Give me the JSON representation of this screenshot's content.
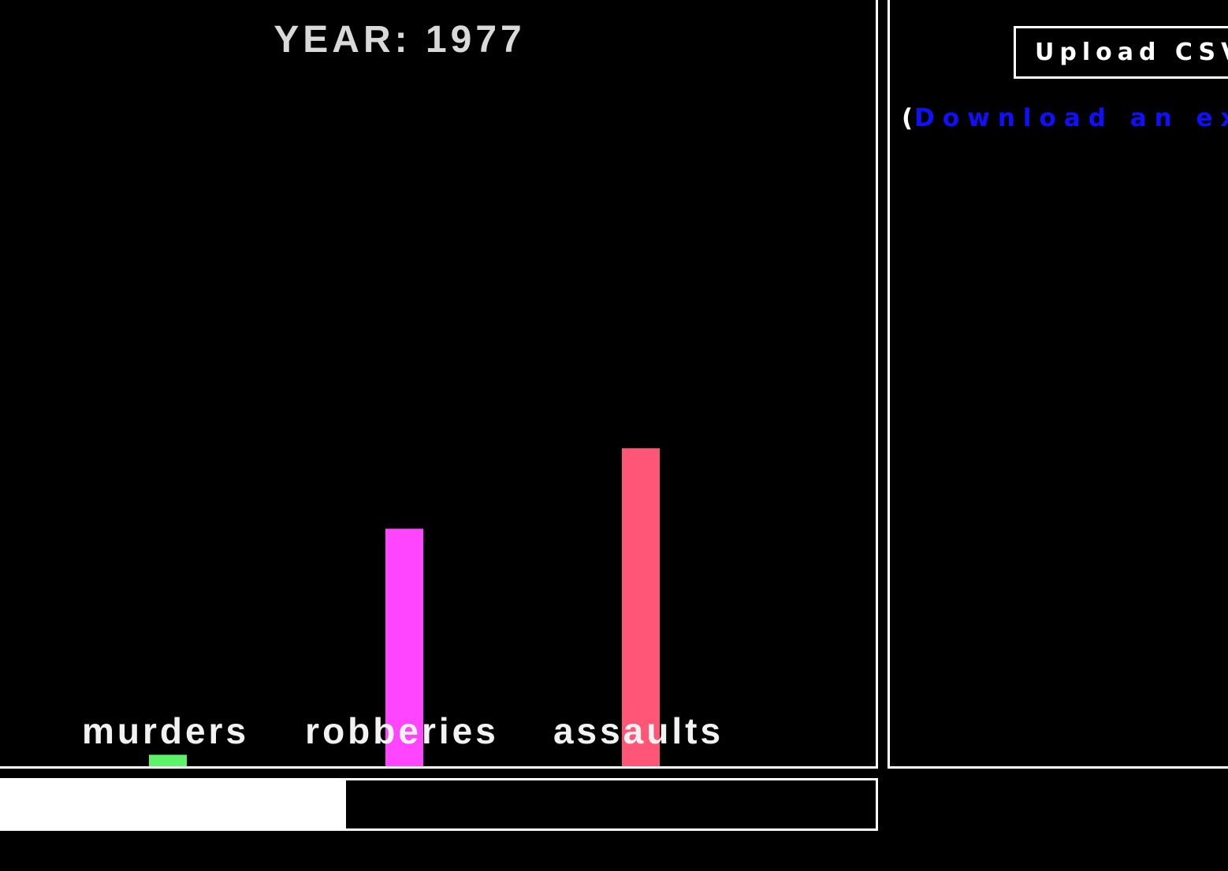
{
  "year_title": "YEAR: 1977",
  "chart_data": {
    "type": "bar",
    "categories": [
      "murders",
      "robberies",
      "assaults"
    ],
    "values": [
      1.5,
      31,
      41.5
    ],
    "ylim": [
      0,
      100
    ],
    "colors": [
      "#5cf26a",
      "#ff45ff",
      "#ff5577"
    ],
    "grid": false,
    "title": "YEAR: 1977"
  },
  "side": {
    "upload_label": "Upload CSV",
    "paren_open": "(",
    "download_text": "Download an example CSV file"
  },
  "progress": {
    "fraction": 0.395
  }
}
